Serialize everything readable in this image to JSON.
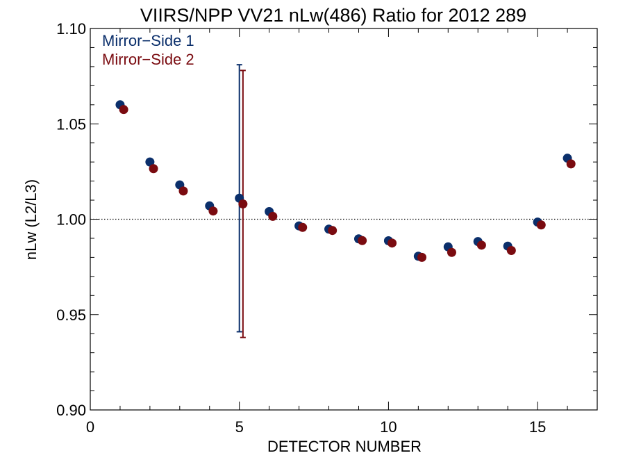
{
  "chart_data": {
    "type": "scatter",
    "title": "VIIRS/NPP VV21 nLw(486) Ratio for 2012 289",
    "xlabel": "DETECTOR NUMBER",
    "ylabel": "nLw (L2/L3)",
    "xlim": [
      0,
      17
    ],
    "ylim": [
      0.9,
      1.1
    ],
    "x_ticks": [
      0,
      5,
      10,
      15
    ],
    "x_tick_labels": [
      "0",
      "5",
      "10",
      "15"
    ],
    "y_ticks": [
      0.9,
      0.95,
      1.0,
      1.05,
      1.1
    ],
    "y_tick_labels": [
      "0.90",
      "0.95",
      "1.00",
      "1.05",
      "1.10"
    ],
    "reference_line": 1.0,
    "legend_position": "top-left",
    "series": [
      {
        "name": "Mirror−Side 1",
        "color": "#0b2f6b",
        "x": [
          1,
          2,
          3,
          4,
          5,
          6,
          7,
          8,
          9,
          10,
          11,
          12,
          13,
          14,
          15,
          16
        ],
        "values": [
          1.06,
          1.03,
          1.018,
          1.007,
          1.011,
          1.004,
          0.9965,
          0.9948,
          0.9897,
          0.9887,
          0.9806,
          0.9855,
          0.9883,
          0.9859,
          0.9985,
          1.032
        ],
        "error_bar": {
          "x": 5,
          "low": 0.941,
          "high": 1.081
        }
      },
      {
        "name": "Mirror−Side 2",
        "color": "#7a0b10",
        "x": [
          1,
          2,
          3,
          4,
          5,
          6,
          7,
          8,
          9,
          10,
          11,
          12,
          13,
          14,
          15,
          16
        ],
        "values": [
          1.0575,
          1.0265,
          1.0148,
          1.0043,
          1.008,
          1.0015,
          0.9957,
          0.9941,
          0.9888,
          0.9875,
          0.98,
          0.9826,
          0.9864,
          0.9836,
          0.997,
          1.029
        ],
        "error_bar": {
          "x": 5,
          "low": 0.938,
          "high": 1.078
        }
      }
    ]
  }
}
